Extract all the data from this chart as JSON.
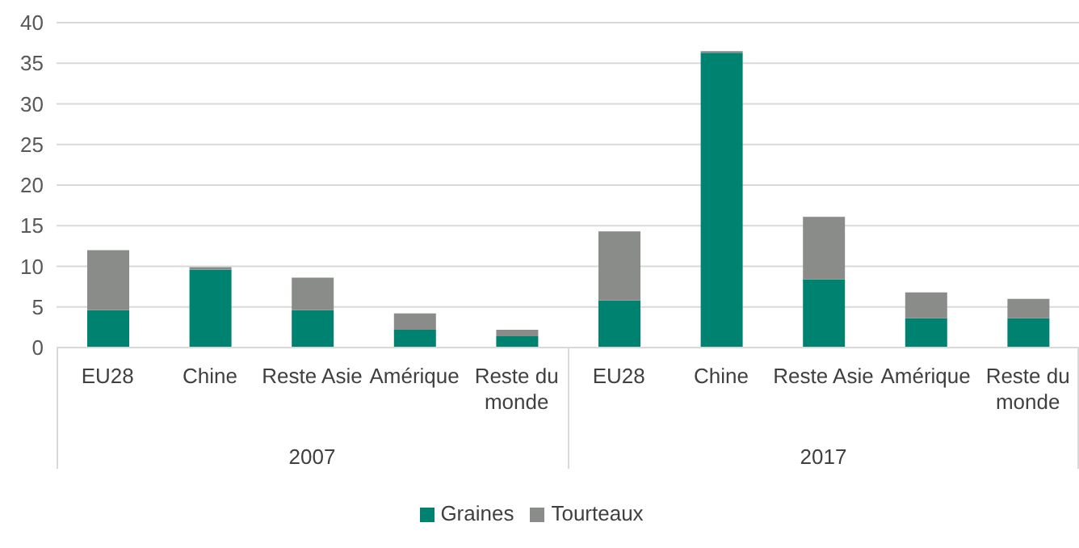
{
  "chart_data": {
    "type": "bar",
    "stacked": true,
    "categories": [
      "EU28",
      "Chine",
      "Reste Asie",
      "Amérique",
      "Reste du monde",
      "EU28",
      "Chine",
      "Reste Asie",
      "Amérique",
      "Reste du monde"
    ],
    "series": [
      {
        "name": "Graines",
        "color": "#008270",
        "values": [
          4.6,
          9.6,
          4.6,
          2.2,
          1.4,
          5.8,
          36.3,
          8.4,
          3.6,
          3.6
        ]
      },
      {
        "name": "Tourteaux",
        "color": "#8a8c8a",
        "values": [
          7.4,
          0.3,
          4.0,
          2.0,
          0.8,
          8.5,
          0.2,
          7.7,
          3.2,
          2.4
        ]
      }
    ],
    "annotations": [
      "2007",
      "2017"
    ],
    "ylim": [
      0,
      40
    ],
    "yticks": [
      0,
      5,
      10,
      15,
      20,
      25,
      30,
      35,
      40
    ],
    "grid": "y",
    "legend": "bottom"
  }
}
